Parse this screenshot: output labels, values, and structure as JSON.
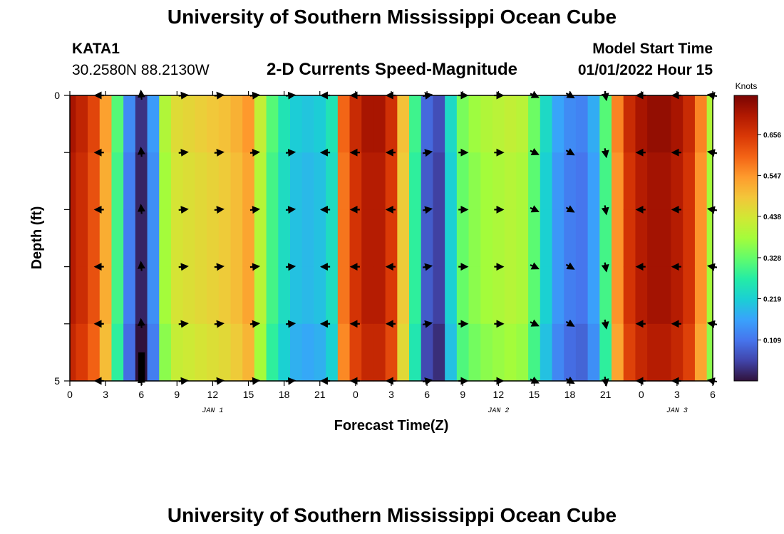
{
  "header": {
    "title": "University of Southern Mississippi Ocean Cube",
    "station": "KATA1",
    "coords": "30.2580N  88.2130W",
    "chart_title": "2-D Currents Speed-Magnitude",
    "model_label": "Model Start Time",
    "model_time": "01/01/2022 Hour 15"
  },
  "footer": {
    "title": "University of Southern Mississippi Ocean Cube"
  },
  "colors": {
    "ramp": [
      "#30123b",
      "#4145ab",
      "#4675ed",
      "#39a2fc",
      "#1bcfd4",
      "#24eca6",
      "#61fc6c",
      "#a4fc3b",
      "#d1e834",
      "#f3c63a",
      "#fe9b2d",
      "#f36315",
      "#d93806",
      "#b11901",
      "#7a0403"
    ],
    "arrow": "#000000",
    "dark_bar": "#000000"
  },
  "chart_data": {
    "type": "heatmap",
    "title": "2-D Currents Speed-Magnitude",
    "xlabel": "Forecast Time(Z)",
    "ylabel": "Depth (ft)",
    "x_ticks": [
      "0",
      "3",
      "6",
      "9",
      "12",
      "15",
      "18",
      "21",
      "0",
      "3",
      "6",
      "9",
      "12",
      "15",
      "18",
      "21",
      "0",
      "3",
      "6"
    ],
    "x_hours": [
      0,
      3,
      6,
      9,
      12,
      15,
      18,
      21,
      24,
      27,
      30,
      33,
      36,
      39,
      42,
      45,
      48,
      51,
      54
    ],
    "day_labels": [
      {
        "label": "JAN 1",
        "hour": 12
      },
      {
        "label": "JAN 2",
        "hour": 36
      },
      {
        "label": "JAN 3",
        "hour": 51
      }
    ],
    "y_ticks": [
      "0",
      "5"
    ],
    "ylim": [
      0,
      5
    ],
    "xlim": [
      0,
      54
    ],
    "depth_levels": [
      0,
      1,
      2,
      3,
      4,
      5
    ],
    "colorbar": {
      "title": "Knots",
      "ticks": [
        "0.109",
        "0.219",
        "0.328",
        "0.438",
        "0.547",
        "0.656"
      ],
      "tick_values": [
        0.109,
        0.219,
        0.328,
        0.438,
        0.547,
        0.656
      ],
      "range": [
        0.0,
        0.76
      ]
    },
    "speed_by_hour": [
      {
        "hour": 0,
        "speed": 0.7
      },
      {
        "hour": 1,
        "speed": 0.67
      },
      {
        "hour": 2,
        "speed": 0.62
      },
      {
        "hour": 3,
        "speed": 0.52
      },
      {
        "hour": 4,
        "speed": 0.3
      },
      {
        "hour": 5,
        "speed": 0.12
      },
      {
        "hour": 6,
        "speed": 0.02
      },
      {
        "hour": 7,
        "speed": 0.14
      },
      {
        "hour": 8,
        "speed": 0.38
      },
      {
        "hour": 9,
        "speed": 0.44
      },
      {
        "hour": 10,
        "speed": 0.45
      },
      {
        "hour": 11,
        "speed": 0.46
      },
      {
        "hour": 12,
        "speed": 0.47
      },
      {
        "hour": 13,
        "speed": 0.48
      },
      {
        "hour": 14,
        "speed": 0.5
      },
      {
        "hour": 15,
        "speed": 0.53
      },
      {
        "hour": 16,
        "speed": 0.4
      },
      {
        "hour": 17,
        "speed": 0.3
      },
      {
        "hour": 18,
        "speed": 0.24
      },
      {
        "hour": 19,
        "speed": 0.2
      },
      {
        "hour": 20,
        "speed": 0.19
      },
      {
        "hour": 21,
        "speed": 0.2
      },
      {
        "hour": 22,
        "speed": 0.24
      },
      {
        "hour": 23,
        "speed": 0.58
      },
      {
        "hour": 24,
        "speed": 0.66
      },
      {
        "hour": 25,
        "speed": 0.7
      },
      {
        "hour": 26,
        "speed": 0.7
      },
      {
        "hour": 27,
        "speed": 0.65
      },
      {
        "hour": 28,
        "speed": 0.48
      },
      {
        "hour": 29,
        "speed": 0.28
      },
      {
        "hour": 30,
        "speed": 0.08
      },
      {
        "hour": 31,
        "speed": 0.05
      },
      {
        "hour": 32,
        "speed": 0.22
      },
      {
        "hour": 33,
        "speed": 0.33
      },
      {
        "hour": 34,
        "speed": 0.36
      },
      {
        "hour": 35,
        "speed": 0.38
      },
      {
        "hour": 36,
        "speed": 0.39
      },
      {
        "hour": 37,
        "speed": 0.4
      },
      {
        "hour": 38,
        "speed": 0.39
      },
      {
        "hour": 39,
        "speed": 0.32
      },
      {
        "hour": 40,
        "speed": 0.22
      },
      {
        "hour": 41,
        "speed": 0.15
      },
      {
        "hour": 42,
        "speed": 0.12
      },
      {
        "hour": 43,
        "speed": 0.11
      },
      {
        "hour": 44,
        "speed": 0.16
      },
      {
        "hour": 45,
        "speed": 0.3
      },
      {
        "hour": 46,
        "speed": 0.55
      },
      {
        "hour": 47,
        "speed": 0.66
      },
      {
        "hour": 48,
        "speed": 0.7
      },
      {
        "hour": 49,
        "speed": 0.72
      },
      {
        "hour": 50,
        "speed": 0.72
      },
      {
        "hour": 51,
        "speed": 0.7
      },
      {
        "hour": 52,
        "speed": 0.66
      },
      {
        "hour": 53,
        "speed": 0.55
      },
      {
        "hour": 54,
        "speed": 0.38
      }
    ],
    "arrow_directions_deg": [
      {
        "hour": 2.5,
        "dir": 180
      },
      {
        "hour": 6,
        "dir": 95
      },
      {
        "hour": 9.5,
        "dir": 5
      },
      {
        "hour": 12.5,
        "dir": 5
      },
      {
        "hour": 15.5,
        "dir": 5
      },
      {
        "hour": 18.5,
        "dir": 5
      },
      {
        "hour": 21.5,
        "dir": 180
      },
      {
        "hour": 24,
        "dir": 180
      },
      {
        "hour": 27,
        "dir": 180
      },
      {
        "hour": 30,
        "dir": 10
      },
      {
        "hour": 33,
        "dir": 0
      },
      {
        "hour": 36,
        "dir": 0
      },
      {
        "hour": 39,
        "dir": -25
      },
      {
        "hour": 42,
        "dir": -30
      },
      {
        "hour": 45,
        "dir": -80
      },
      {
        "hour": 48,
        "dir": 180
      },
      {
        "hour": 51,
        "dir": 180
      },
      {
        "hour": 54,
        "dir": 170
      }
    ]
  }
}
